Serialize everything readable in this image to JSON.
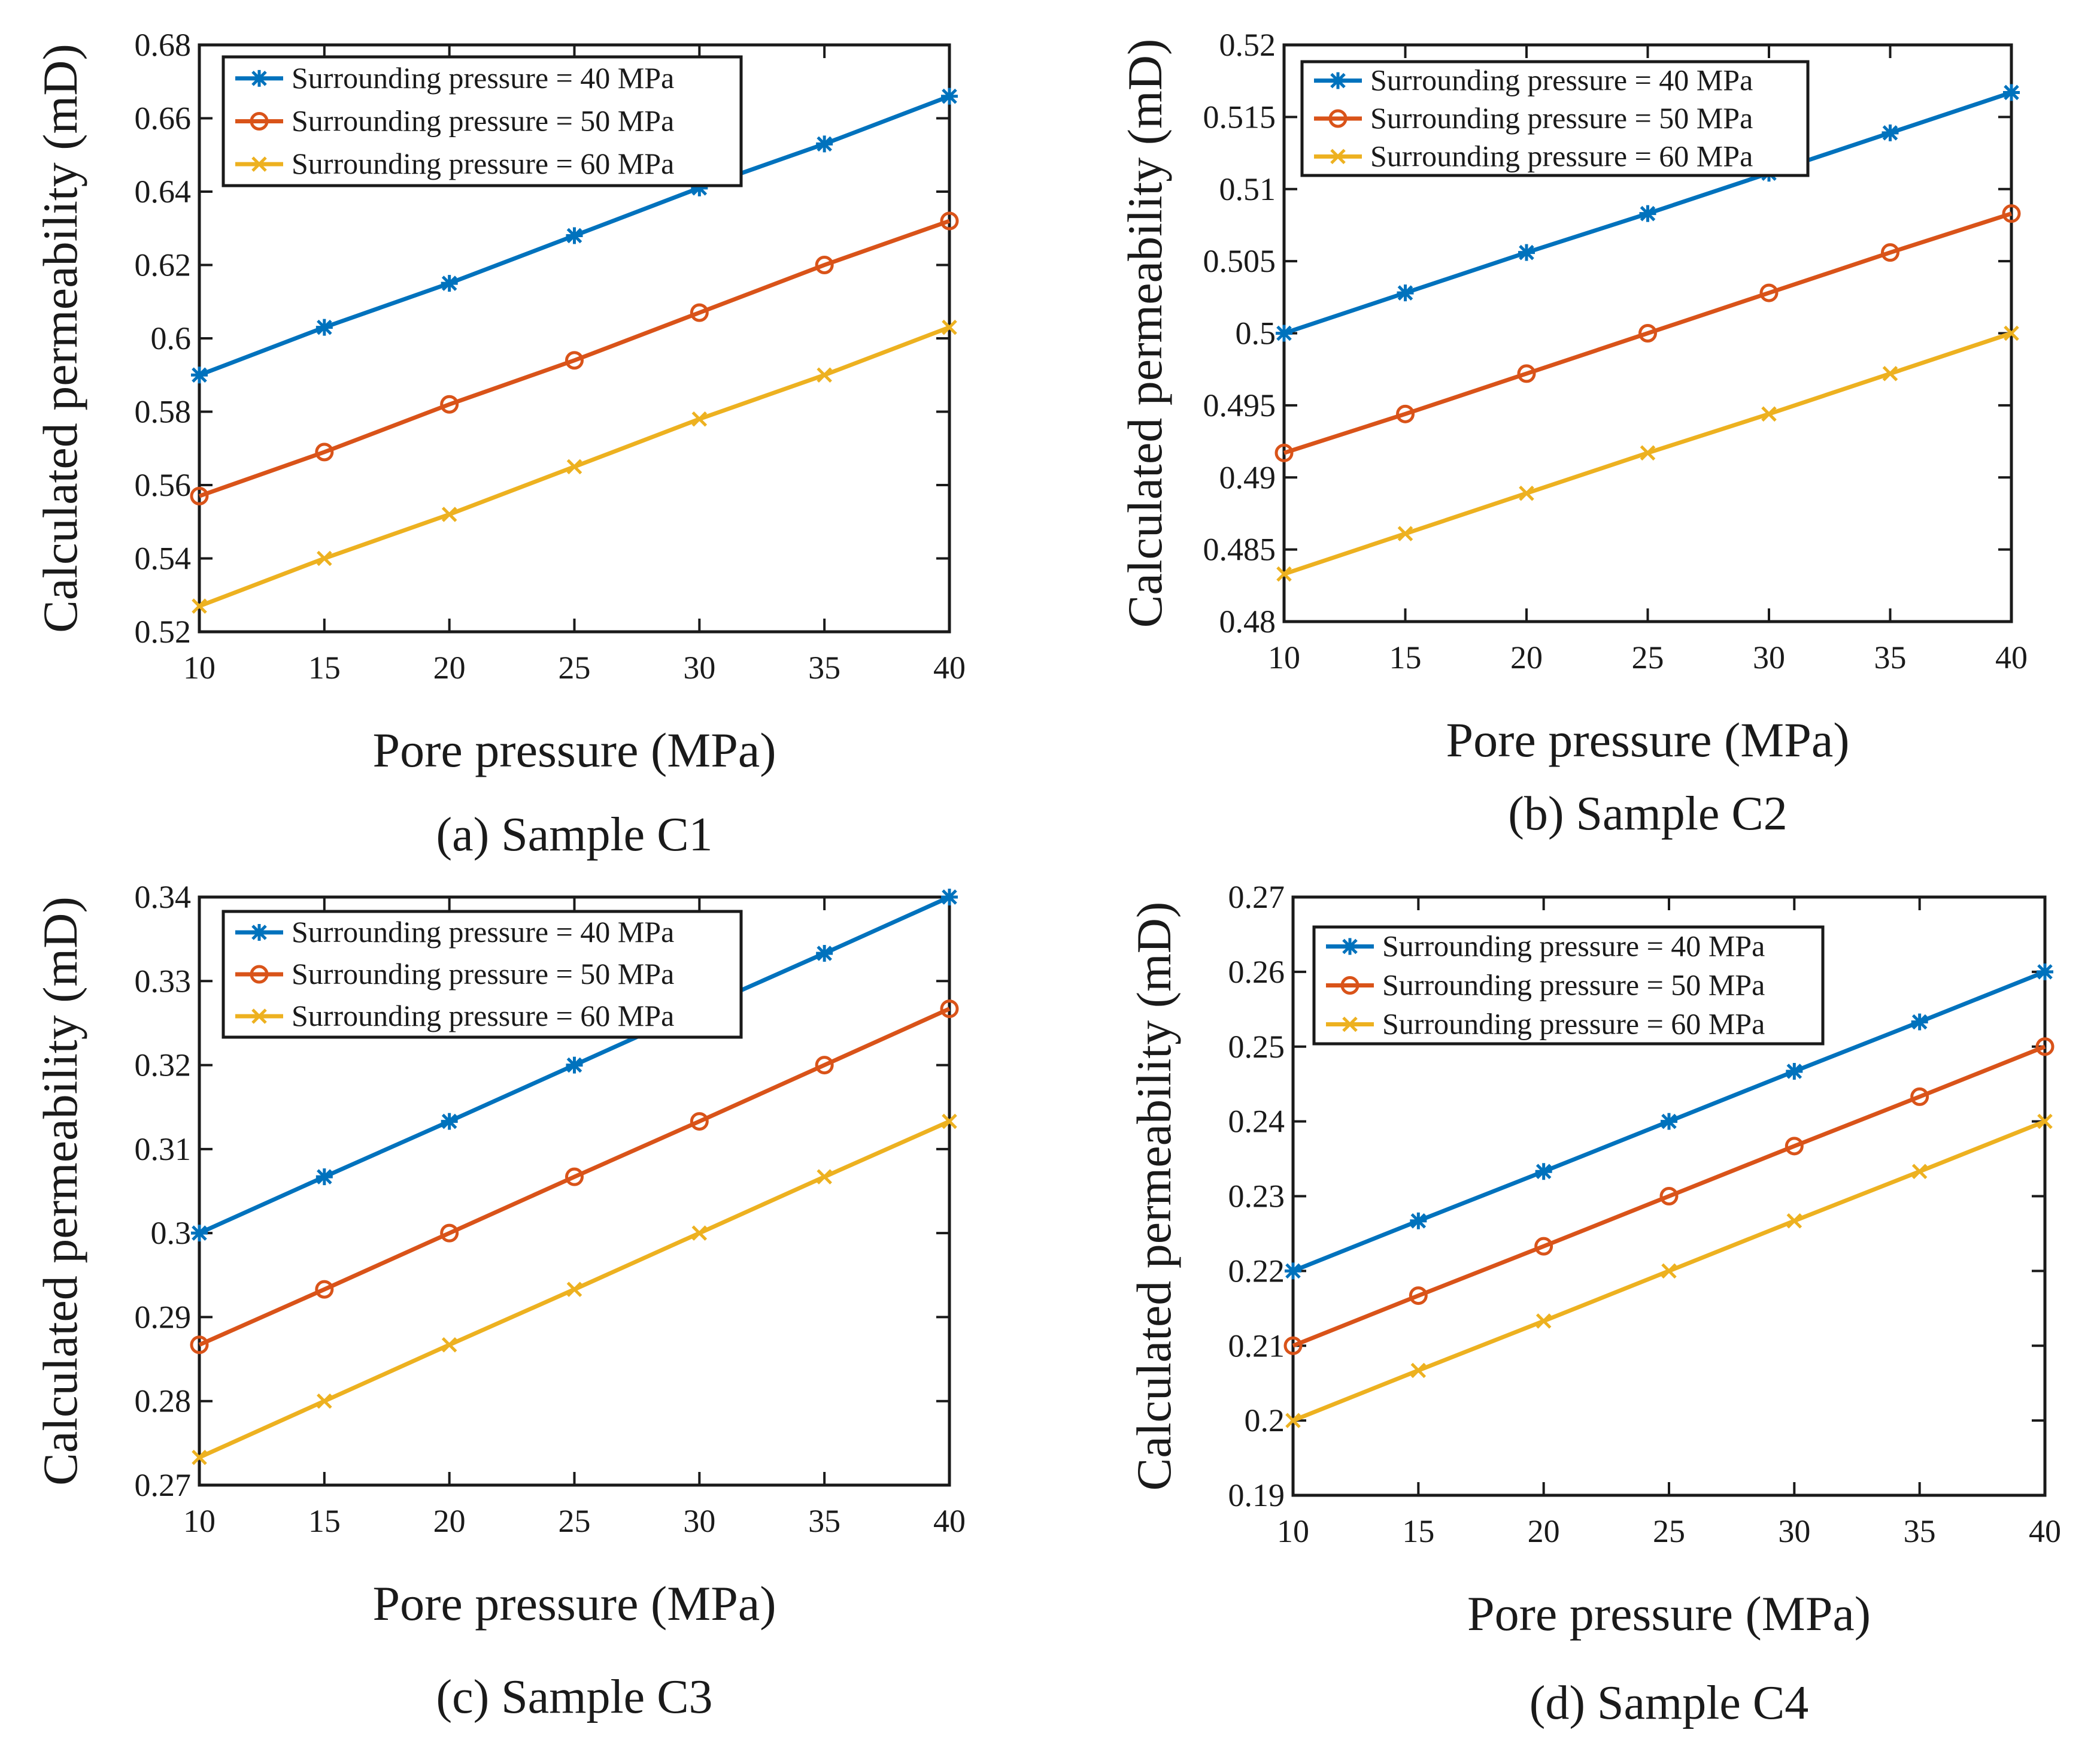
{
  "figure": {
    "colors": {
      "series_40": "#0072BD",
      "series_50": "#D95319",
      "series_60": "#EDB120",
      "axis": "#1a1a1a"
    }
  },
  "chart_data": [
    {
      "type": "line",
      "caption": "(a) Sample C1",
      "xlabel": "Pore pressure (MPa)",
      "ylabel": "Calculated permeability (mD)",
      "xlim": [
        10,
        40
      ],
      "ylim": [
        0.52,
        0.68
      ],
      "xticks": [
        "10",
        "15",
        "20",
        "25",
        "30",
        "35",
        "40"
      ],
      "yticks": [
        "0.52",
        "0.54",
        "0.56",
        "0.58",
        "0.6",
        "0.62",
        "0.64",
        "0.66",
        "0.68"
      ],
      "legend_position": "top-left",
      "grid": false,
      "x": [
        10,
        15,
        20,
        25,
        30,
        35,
        40
      ],
      "series": [
        {
          "name": "Surrounding pressure = 40 MPa",
          "marker": "asterisk",
          "color": "#0072BD",
          "values": [
            0.59,
            0.603,
            0.615,
            0.628,
            0.641,
            0.653,
            0.666
          ]
        },
        {
          "name": "Surrounding pressure = 50 MPa",
          "marker": "circle",
          "color": "#D95319",
          "values": [
            0.557,
            0.569,
            0.582,
            0.594,
            0.607,
            0.62,
            0.632
          ]
        },
        {
          "name": "Surrounding pressure = 60 MPa",
          "marker": "cross",
          "color": "#EDB120",
          "values": [
            0.527,
            0.54,
            0.552,
            0.565,
            0.578,
            0.59,
            0.603
          ]
        }
      ]
    },
    {
      "type": "line",
      "caption": "(b) Sample C2",
      "xlabel": "Pore pressure (MPa)",
      "ylabel": "Calculated permeability (mD)",
      "xlim": [
        10,
        40
      ],
      "ylim": [
        0.48,
        0.52
      ],
      "xticks": [
        "10",
        "15",
        "20",
        "25",
        "30",
        "35",
        "40"
      ],
      "yticks": [
        "0.48",
        "0.485",
        "0.49",
        "0.495",
        "0.5",
        "0.505",
        "0.51",
        "0.515",
        "0.52"
      ],
      "legend_position": "top-left",
      "grid": false,
      "x": [
        10,
        15,
        20,
        25,
        30,
        35,
        40
      ],
      "series": [
        {
          "name": "Surrounding pressure = 40 MPa",
          "marker": "asterisk",
          "color": "#0072BD",
          "values": [
            0.5,
            0.5028,
            0.5056,
            0.5083,
            0.5111,
            0.5139,
            0.5167
          ]
        },
        {
          "name": "Surrounding pressure = 50 MPa",
          "marker": "circle",
          "color": "#D95319",
          "values": [
            0.4917,
            0.4944,
            0.4972,
            0.5,
            0.5028,
            0.5056,
            0.5083
          ]
        },
        {
          "name": "Surrounding pressure = 60 MPa",
          "marker": "cross",
          "color": "#EDB120",
          "values": [
            0.4833,
            0.4861,
            0.4889,
            0.4917,
            0.4944,
            0.4972,
            0.5
          ]
        }
      ]
    },
    {
      "type": "line",
      "caption": "(c) Sample C3",
      "xlabel": "Pore pressure (MPa)",
      "ylabel": "Calculated permeability (mD)",
      "xlim": [
        10,
        40
      ],
      "ylim": [
        0.27,
        0.34
      ],
      "xticks": [
        "10",
        "15",
        "20",
        "25",
        "30",
        "35",
        "40"
      ],
      "yticks": [
        "0.27",
        "0.28",
        "0.29",
        "0.3",
        "0.31",
        "0.32",
        "0.33",
        "0.34"
      ],
      "legend_position": "top-left",
      "grid": false,
      "x": [
        10,
        15,
        20,
        25,
        30,
        35,
        40
      ],
      "series": [
        {
          "name": "Surrounding pressure = 40 MPa",
          "marker": "asterisk",
          "color": "#0072BD",
          "values": [
            0.3,
            0.3067,
            0.3133,
            0.32,
            0.3267,
            0.3333,
            0.34
          ]
        },
        {
          "name": "Surrounding pressure = 50 MPa",
          "marker": "circle",
          "color": "#D95319",
          "values": [
            0.2867,
            0.2933,
            0.3,
            0.3067,
            0.3133,
            0.32,
            0.3267
          ]
        },
        {
          "name": "Surrounding pressure = 60 MPa",
          "marker": "cross",
          "color": "#EDB120",
          "values": [
            0.2733,
            0.28,
            0.2867,
            0.2933,
            0.3,
            0.3067,
            0.3133
          ]
        }
      ]
    },
    {
      "type": "line",
      "caption": "(d) Sample C4",
      "xlabel": "Pore pressure (MPa)",
      "ylabel": "Calculated permeability (mD)",
      "xlim": [
        10,
        40
      ],
      "ylim": [
        0.19,
        0.27
      ],
      "xticks": [
        "10",
        "15",
        "20",
        "25",
        "30",
        "35",
        "40"
      ],
      "yticks": [
        "0.19",
        "0.2",
        "0.21",
        "0.22",
        "0.23",
        "0.24",
        "0.25",
        "0.26",
        "0.27"
      ],
      "legend_position": "top-left",
      "grid": false,
      "x": [
        10,
        15,
        20,
        25,
        30,
        35,
        40
      ],
      "series": [
        {
          "name": "Surrounding pressure = 40 MPa",
          "marker": "asterisk",
          "color": "#0072BD",
          "values": [
            0.22,
            0.2267,
            0.2333,
            0.24,
            0.2467,
            0.2533,
            0.26
          ]
        },
        {
          "name": "Surrounding pressure = 50 MPa",
          "marker": "circle",
          "color": "#D95319",
          "values": [
            0.21,
            0.2167,
            0.2233,
            0.23,
            0.2367,
            0.2433,
            0.25
          ]
        },
        {
          "name": "Surrounding pressure = 60 MPa",
          "marker": "cross",
          "color": "#EDB120",
          "values": [
            0.2,
            0.2067,
            0.2133,
            0.22,
            0.2267,
            0.2333,
            0.24
          ]
        }
      ]
    }
  ]
}
